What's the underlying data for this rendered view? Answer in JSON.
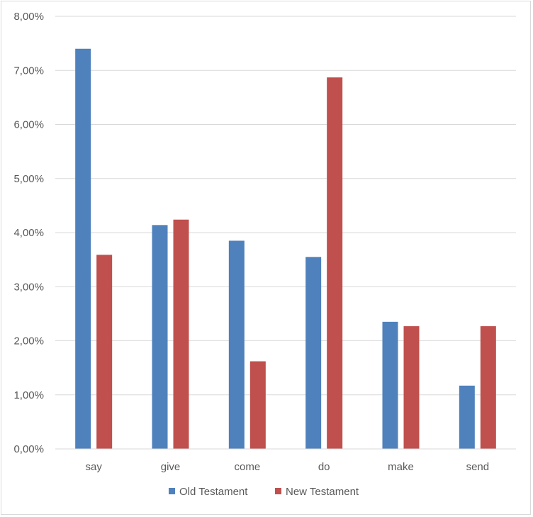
{
  "chart_data": {
    "type": "bar",
    "title": "",
    "xlabel": "",
    "ylabel": "",
    "categories": [
      "say",
      "give",
      "come",
      "do",
      "make",
      "send"
    ],
    "series": [
      {
        "name": "Old Testament",
        "color": "#4f81bd",
        "values": [
          7.4,
          4.14,
          3.85,
          3.55,
          2.35,
          1.17
        ]
      },
      {
        "name": "New Testament",
        "color": "#c0504d",
        "values": [
          3.59,
          4.24,
          1.62,
          6.87,
          2.27,
          2.27
        ]
      }
    ],
    "ylim": [
      0,
      8
    ],
    "yticks": [
      "0,00%",
      "1,00%",
      "2,00%",
      "3,00%",
      "4,00%",
      "5,00%",
      "6,00%",
      "7,00%",
      "8,00%"
    ],
    "grid": true,
    "legend_position": "bottom",
    "gridline_color": "#d9d9d9"
  }
}
